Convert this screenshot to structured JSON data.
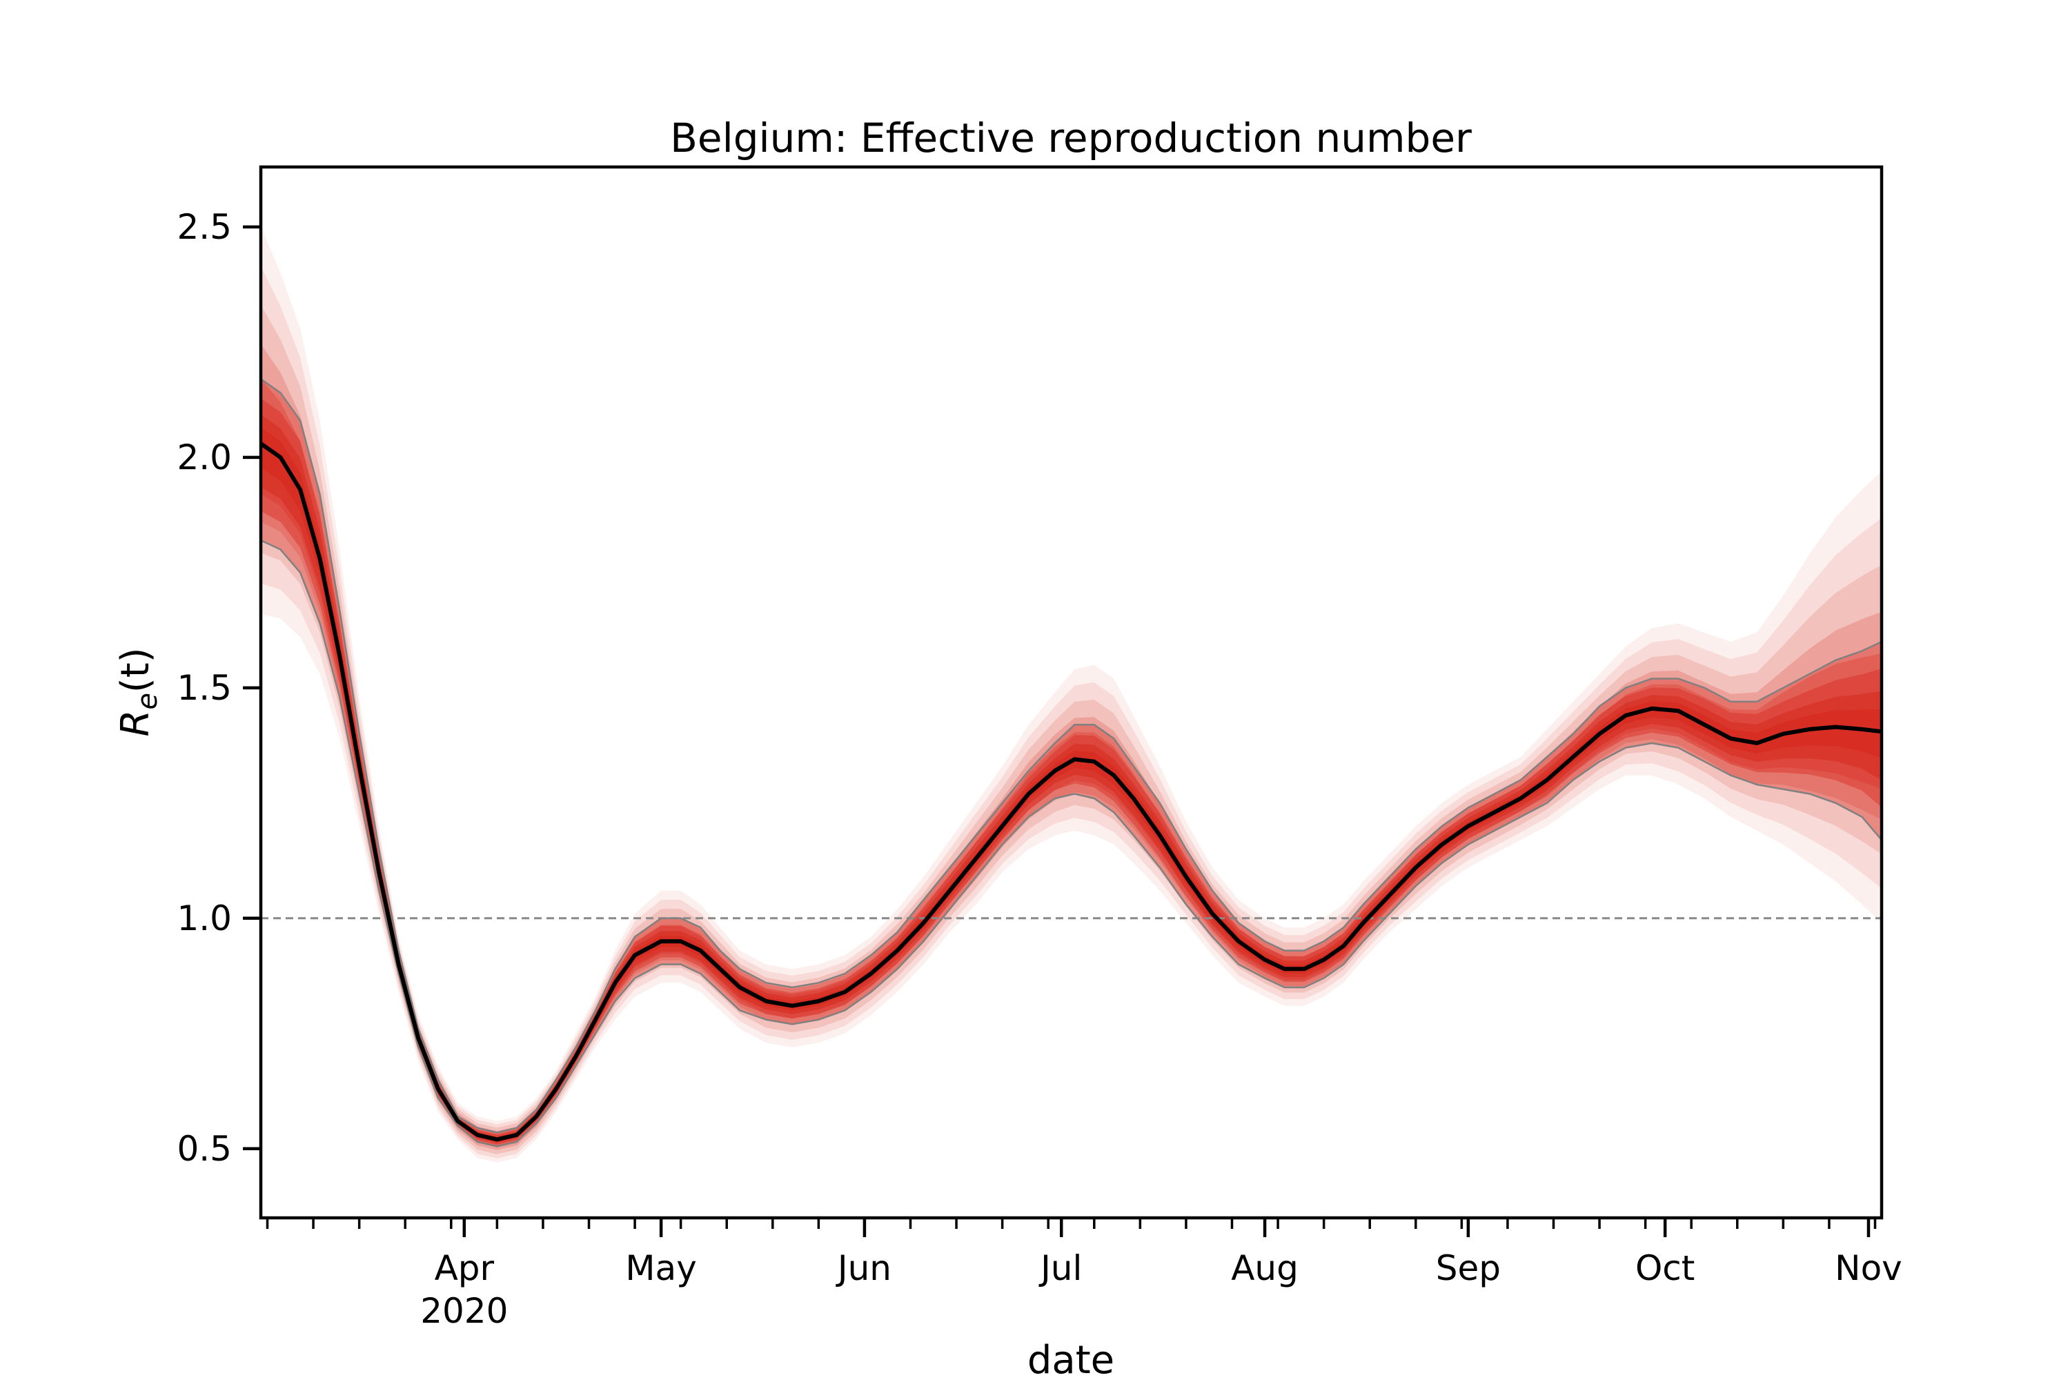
{
  "chart_data": {
    "type": "line",
    "title": "Belgium: Effective reproduction number",
    "xlabel": "date",
    "ylabel_base": "R",
    "ylabel_sub": "e",
    "ylabel_arg": "(t)",
    "xlim": [
      "2020-03-01",
      "2020-11-03"
    ],
    "ylim": [
      0.35,
      2.63
    ],
    "yticks": [
      0.5,
      1.0,
      1.5,
      2.0,
      2.5
    ],
    "ytick_labels": [
      "0.5",
      "1.0",
      "1.5",
      "2.0",
      "2.5"
    ],
    "xticks": [
      {
        "date": "2020-04-01",
        "label": "Apr",
        "sublabel": "2020"
      },
      {
        "date": "2020-05-01",
        "label": "May",
        "sublabel": ""
      },
      {
        "date": "2020-06-01",
        "label": "Jun",
        "sublabel": ""
      },
      {
        "date": "2020-07-01",
        "label": "Jul",
        "sublabel": ""
      },
      {
        "date": "2020-08-01",
        "label": "Aug",
        "sublabel": ""
      },
      {
        "date": "2020-09-01",
        "label": "Sep",
        "sublabel": ""
      },
      {
        "date": "2020-10-01",
        "label": "Oct",
        "sublabel": ""
      },
      {
        "date": "2020-11-01",
        "label": "Nov",
        "sublabel": ""
      }
    ],
    "reference_line": {
      "y": 1.0,
      "style": "dashed",
      "color": "#888888"
    },
    "colors": {
      "median": "#000000",
      "band": "#d62418",
      "band_edge": "#808080"
    },
    "series": [
      {
        "role": "median",
        "x": [
          "2020-03-01",
          "2020-03-04",
          "2020-03-07",
          "2020-03-10",
          "2020-03-13",
          "2020-03-16",
          "2020-03-19",
          "2020-03-22",
          "2020-03-25",
          "2020-03-28",
          "2020-03-31",
          "2020-04-03",
          "2020-04-06",
          "2020-04-09",
          "2020-04-12",
          "2020-04-15",
          "2020-04-18",
          "2020-04-21",
          "2020-04-24",
          "2020-04-27",
          "2020-05-01",
          "2020-05-04",
          "2020-05-07",
          "2020-05-10",
          "2020-05-13",
          "2020-05-17",
          "2020-05-21",
          "2020-05-25",
          "2020-05-29",
          "2020-06-02",
          "2020-06-06",
          "2020-06-10",
          "2020-06-14",
          "2020-06-18",
          "2020-06-22",
          "2020-06-26",
          "2020-06-30",
          "2020-07-03",
          "2020-07-06",
          "2020-07-09",
          "2020-07-12",
          "2020-07-16",
          "2020-07-20",
          "2020-07-24",
          "2020-07-28",
          "2020-08-01",
          "2020-08-04",
          "2020-08-07",
          "2020-08-10",
          "2020-08-13",
          "2020-08-16",
          "2020-08-20",
          "2020-08-24",
          "2020-08-28",
          "2020-09-01",
          "2020-09-05",
          "2020-09-09",
          "2020-09-13",
          "2020-09-17",
          "2020-09-21",
          "2020-09-25",
          "2020-09-29",
          "2020-10-03",
          "2020-10-07",
          "2020-10-11",
          "2020-10-15",
          "2020-10-19",
          "2020-10-23",
          "2020-10-27",
          "2020-10-31",
          "2020-11-03"
        ],
        "values": [
          2.03,
          2.0,
          1.93,
          1.78,
          1.57,
          1.33,
          1.1,
          0.9,
          0.74,
          0.63,
          0.56,
          0.53,
          0.52,
          0.53,
          0.57,
          0.63,
          0.7,
          0.78,
          0.86,
          0.92,
          0.95,
          0.95,
          0.93,
          0.89,
          0.85,
          0.82,
          0.81,
          0.82,
          0.84,
          0.88,
          0.93,
          0.99,
          1.06,
          1.13,
          1.2,
          1.27,
          1.32,
          1.345,
          1.34,
          1.31,
          1.26,
          1.18,
          1.09,
          1.01,
          0.95,
          0.91,
          0.89,
          0.89,
          0.91,
          0.94,
          0.99,
          1.05,
          1.11,
          1.16,
          1.2,
          1.23,
          1.26,
          1.3,
          1.35,
          1.4,
          1.44,
          1.455,
          1.45,
          1.42,
          1.39,
          1.38,
          1.4,
          1.41,
          1.415,
          1.41,
          1.405
        ]
      },
      {
        "role": "lower_bound",
        "x": [
          "2020-03-01",
          "2020-03-04",
          "2020-03-07",
          "2020-03-10",
          "2020-03-13",
          "2020-03-16",
          "2020-03-19",
          "2020-03-22",
          "2020-03-25",
          "2020-03-28",
          "2020-03-31",
          "2020-04-03",
          "2020-04-06",
          "2020-04-09",
          "2020-04-12",
          "2020-04-15",
          "2020-04-18",
          "2020-04-21",
          "2020-04-24",
          "2020-04-27",
          "2020-05-01",
          "2020-05-04",
          "2020-05-07",
          "2020-05-10",
          "2020-05-13",
          "2020-05-17",
          "2020-05-21",
          "2020-05-25",
          "2020-05-29",
          "2020-06-02",
          "2020-06-06",
          "2020-06-10",
          "2020-06-14",
          "2020-06-18",
          "2020-06-22",
          "2020-06-26",
          "2020-06-30",
          "2020-07-03",
          "2020-07-06",
          "2020-07-09",
          "2020-07-12",
          "2020-07-16",
          "2020-07-20",
          "2020-07-24",
          "2020-07-28",
          "2020-08-01",
          "2020-08-04",
          "2020-08-07",
          "2020-08-10",
          "2020-08-13",
          "2020-08-16",
          "2020-08-20",
          "2020-08-24",
          "2020-08-28",
          "2020-09-01",
          "2020-09-05",
          "2020-09-09",
          "2020-09-13",
          "2020-09-17",
          "2020-09-21",
          "2020-09-25",
          "2020-09-29",
          "2020-10-03",
          "2020-10-07",
          "2020-10-11",
          "2020-10-15",
          "2020-10-19",
          "2020-10-23",
          "2020-10-27",
          "2020-10-31",
          "2020-11-03"
        ],
        "values": [
          1.82,
          1.8,
          1.75,
          1.64,
          1.48,
          1.27,
          1.06,
          0.88,
          0.72,
          0.61,
          0.55,
          0.515,
          0.505,
          0.515,
          0.555,
          0.61,
          0.68,
          0.75,
          0.82,
          0.87,
          0.9,
          0.9,
          0.88,
          0.84,
          0.8,
          0.78,
          0.77,
          0.78,
          0.8,
          0.84,
          0.89,
          0.95,
          1.02,
          1.09,
          1.16,
          1.22,
          1.26,
          1.27,
          1.26,
          1.23,
          1.18,
          1.11,
          1.03,
          0.96,
          0.9,
          0.87,
          0.85,
          0.85,
          0.87,
          0.9,
          0.95,
          1.01,
          1.07,
          1.12,
          1.16,
          1.19,
          1.22,
          1.25,
          1.3,
          1.34,
          1.37,
          1.38,
          1.37,
          1.34,
          1.31,
          1.29,
          1.28,
          1.27,
          1.25,
          1.22,
          1.17
        ]
      },
      {
        "role": "upper_bound",
        "x": [
          "2020-03-01",
          "2020-03-04",
          "2020-03-07",
          "2020-03-10",
          "2020-03-13",
          "2020-03-16",
          "2020-03-19",
          "2020-03-22",
          "2020-03-25",
          "2020-03-28",
          "2020-03-31",
          "2020-04-03",
          "2020-04-06",
          "2020-04-09",
          "2020-04-12",
          "2020-04-15",
          "2020-04-18",
          "2020-04-21",
          "2020-04-24",
          "2020-04-27",
          "2020-05-01",
          "2020-05-04",
          "2020-05-07",
          "2020-05-10",
          "2020-05-13",
          "2020-05-17",
          "2020-05-21",
          "2020-05-25",
          "2020-05-29",
          "2020-06-02",
          "2020-06-06",
          "2020-06-10",
          "2020-06-14",
          "2020-06-18",
          "2020-06-22",
          "2020-06-26",
          "2020-06-30",
          "2020-07-03",
          "2020-07-06",
          "2020-07-09",
          "2020-07-12",
          "2020-07-16",
          "2020-07-20",
          "2020-07-24",
          "2020-07-28",
          "2020-08-01",
          "2020-08-04",
          "2020-08-07",
          "2020-08-10",
          "2020-08-13",
          "2020-08-16",
          "2020-08-20",
          "2020-08-24",
          "2020-08-28",
          "2020-09-01",
          "2020-09-05",
          "2020-09-09",
          "2020-09-13",
          "2020-09-17",
          "2020-09-21",
          "2020-09-25",
          "2020-09-29",
          "2020-10-03",
          "2020-10-07",
          "2020-10-11",
          "2020-10-15",
          "2020-10-19",
          "2020-10-23",
          "2020-10-27",
          "2020-10-31",
          "2020-11-03"
        ],
        "values": [
          2.17,
          2.14,
          2.08,
          1.92,
          1.67,
          1.4,
          1.15,
          0.93,
          0.76,
          0.65,
          0.57,
          0.545,
          0.535,
          0.545,
          0.585,
          0.65,
          0.72,
          0.8,
          0.89,
          0.96,
          1.0,
          1.0,
          0.98,
          0.93,
          0.89,
          0.86,
          0.85,
          0.86,
          0.88,
          0.92,
          0.97,
          1.04,
          1.11,
          1.18,
          1.25,
          1.32,
          1.38,
          1.42,
          1.42,
          1.39,
          1.33,
          1.25,
          1.15,
          1.06,
          0.99,
          0.95,
          0.93,
          0.93,
          0.95,
          0.98,
          1.03,
          1.09,
          1.15,
          1.2,
          1.24,
          1.27,
          1.3,
          1.35,
          1.4,
          1.46,
          1.5,
          1.52,
          1.52,
          1.5,
          1.47,
          1.47,
          1.5,
          1.53,
          1.56,
          1.58,
          1.6
        ]
      },
      {
        "role": "outer_lower",
        "x": [
          "2020-03-01",
          "2020-03-04",
          "2020-03-07",
          "2020-03-10",
          "2020-03-13",
          "2020-03-16",
          "2020-03-19",
          "2020-03-22",
          "2020-03-25",
          "2020-03-28",
          "2020-03-31",
          "2020-04-03",
          "2020-04-06",
          "2020-04-09",
          "2020-04-12",
          "2020-04-15",
          "2020-04-18",
          "2020-04-21",
          "2020-04-24",
          "2020-04-27",
          "2020-05-01",
          "2020-05-04",
          "2020-05-07",
          "2020-05-10",
          "2020-05-13",
          "2020-05-17",
          "2020-05-21",
          "2020-05-25",
          "2020-05-29",
          "2020-06-02",
          "2020-06-06",
          "2020-06-10",
          "2020-06-14",
          "2020-06-18",
          "2020-06-22",
          "2020-06-26",
          "2020-06-30",
          "2020-07-03",
          "2020-07-06",
          "2020-07-09",
          "2020-07-12",
          "2020-07-16",
          "2020-07-20",
          "2020-07-24",
          "2020-07-28",
          "2020-08-01",
          "2020-08-04",
          "2020-08-07",
          "2020-08-10",
          "2020-08-13",
          "2020-08-16",
          "2020-08-20",
          "2020-08-24",
          "2020-08-28",
          "2020-09-01",
          "2020-09-05",
          "2020-09-09",
          "2020-09-13",
          "2020-09-17",
          "2020-09-21",
          "2020-09-25",
          "2020-09-29",
          "2020-10-03",
          "2020-10-07",
          "2020-10-11",
          "2020-10-15",
          "2020-10-19",
          "2020-10-23",
          "2020-10-27",
          "2020-10-31",
          "2020-11-03"
        ],
        "values": [
          1.66,
          1.65,
          1.61,
          1.53,
          1.39,
          1.2,
          1.01,
          0.84,
          0.69,
          0.58,
          0.52,
          0.48,
          0.47,
          0.48,
          0.52,
          0.58,
          0.65,
          0.72,
          0.78,
          0.83,
          0.86,
          0.86,
          0.84,
          0.8,
          0.76,
          0.73,
          0.72,
          0.73,
          0.75,
          0.79,
          0.84,
          0.9,
          0.97,
          1.03,
          1.1,
          1.15,
          1.18,
          1.19,
          1.18,
          1.16,
          1.12,
          1.06,
          0.99,
          0.92,
          0.86,
          0.83,
          0.81,
          0.81,
          0.83,
          0.86,
          0.91,
          0.97,
          1.02,
          1.07,
          1.11,
          1.14,
          1.17,
          1.2,
          1.24,
          1.28,
          1.31,
          1.31,
          1.29,
          1.26,
          1.22,
          1.19,
          1.16,
          1.12,
          1.08,
          1.03,
          0.99
        ]
      },
      {
        "role": "outer_upper",
        "x": [
          "2020-03-01",
          "2020-03-04",
          "2020-03-07",
          "2020-03-10",
          "2020-03-13",
          "2020-03-16",
          "2020-03-19",
          "2020-03-22",
          "2020-03-25",
          "2020-03-28",
          "2020-03-31",
          "2020-04-03",
          "2020-04-06",
          "2020-04-09",
          "2020-04-12",
          "2020-04-15",
          "2020-04-18",
          "2020-04-21",
          "2020-04-24",
          "2020-04-27",
          "2020-05-01",
          "2020-05-04",
          "2020-05-07",
          "2020-05-10",
          "2020-05-13",
          "2020-05-17",
          "2020-05-21",
          "2020-05-25",
          "2020-05-29",
          "2020-06-02",
          "2020-06-06",
          "2020-06-10",
          "2020-06-14",
          "2020-06-18",
          "2020-06-22",
          "2020-06-26",
          "2020-06-30",
          "2020-07-03",
          "2020-07-06",
          "2020-07-09",
          "2020-07-12",
          "2020-07-16",
          "2020-07-20",
          "2020-07-24",
          "2020-07-28",
          "2020-08-01",
          "2020-08-04",
          "2020-08-07",
          "2020-08-10",
          "2020-08-13",
          "2020-08-16",
          "2020-08-20",
          "2020-08-24",
          "2020-08-28",
          "2020-09-01",
          "2020-09-05",
          "2020-09-09",
          "2020-09-13",
          "2020-09-17",
          "2020-09-21",
          "2020-09-25",
          "2020-09-29",
          "2020-10-03",
          "2020-10-07",
          "2020-10-11",
          "2020-10-15",
          "2020-10-19",
          "2020-10-23",
          "2020-10-27",
          "2020-10-31",
          "2020-11-03"
        ],
        "values": [
          2.5,
          2.4,
          2.28,
          2.08,
          1.8,
          1.48,
          1.2,
          0.96,
          0.79,
          0.68,
          0.6,
          0.57,
          0.56,
          0.57,
          0.61,
          0.67,
          0.75,
          0.83,
          0.93,
          1.01,
          1.06,
          1.06,
          1.03,
          0.98,
          0.93,
          0.9,
          0.89,
          0.9,
          0.92,
          0.96,
          1.02,
          1.09,
          1.17,
          1.25,
          1.33,
          1.42,
          1.49,
          1.54,
          1.55,
          1.52,
          1.44,
          1.33,
          1.21,
          1.11,
          1.04,
          1.0,
          0.98,
          0.98,
          1.0,
          1.03,
          1.08,
          1.14,
          1.2,
          1.25,
          1.29,
          1.32,
          1.35,
          1.41,
          1.47,
          1.53,
          1.59,
          1.63,
          1.64,
          1.62,
          1.6,
          1.62,
          1.7,
          1.79,
          1.87,
          1.93,
          1.97
        ]
      }
    ]
  }
}
